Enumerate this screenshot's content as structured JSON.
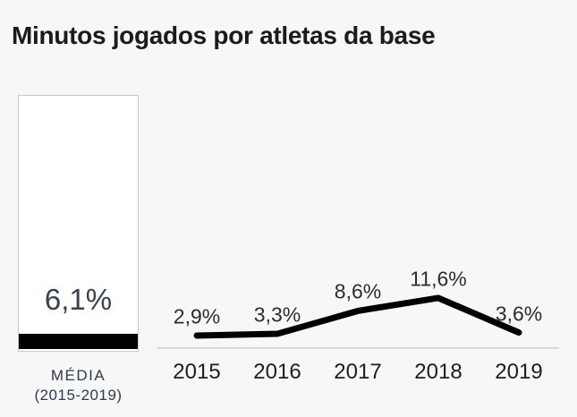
{
  "title": "Minutos jogados por atletas da base",
  "average": {
    "value_label": "6,1%",
    "value_percent": 6.1,
    "caption_line1": "MÉDIA",
    "caption_line2": "(2015-2019)"
  },
  "chart_data": {
    "type": "line",
    "title": "Minutos jogados por atletas da base",
    "categories": [
      "2015",
      "2016",
      "2017",
      "2018",
      "2019"
    ],
    "values": [
      2.9,
      3.3,
      8.6,
      11.6,
      3.6
    ],
    "point_labels": [
      "2,9%",
      "3,3%",
      "8,6%",
      "11,6%",
      "3,6%"
    ],
    "xlabel": "",
    "ylabel": "",
    "ylim": [
      0,
      14.3
    ],
    "grid": false,
    "legend": false,
    "annotation_average": {
      "label": "MÉDIA (2015-2019)",
      "value": 6.1,
      "value_label": "6,1%"
    }
  },
  "colors": {
    "background": "#f7f7f7",
    "title_text": "#1b1b1b",
    "accent_text": "#36424e",
    "line": "#000000",
    "average_fill": "#000000",
    "axis_line": "#d9d9d9",
    "box_border": "#c9c9c9",
    "point_label_text": "#2d2d2d",
    "tick_text": "#1e1e1e"
  }
}
